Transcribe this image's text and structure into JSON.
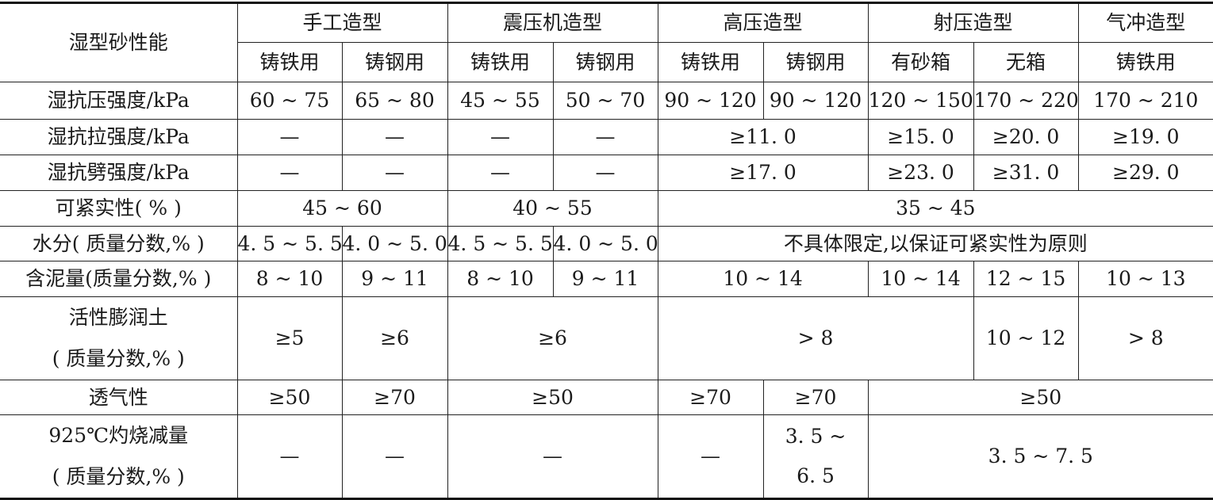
{
  "header": {
    "property": "湿型砂性能",
    "groups": [
      "手工造型",
      "震压机造型",
      "高压造型",
      "射压造型",
      "气冲造型"
    ],
    "subs": [
      "铸铁用",
      "铸钢用",
      "铸铁用",
      "铸钢用",
      "铸铁用",
      "铸钢用",
      "有砂箱",
      "无箱",
      "铸铁用"
    ]
  },
  "rows": [
    {
      "label": "湿抗压强度/kPa",
      "cells": [
        "60 ~ 75",
        "65 ~ 80",
        "45 ~ 55",
        "50 ~ 70",
        "90 ~ 120",
        "90 ~ 120",
        "120 ~ 150",
        "170 ~ 220",
        "170 ~ 210"
      ]
    },
    {
      "label": "湿抗拉强度/kPa",
      "cells": [
        "—",
        "—",
        "—",
        "—",
        "≥11. 0",
        "≥15. 0",
        "≥20. 0",
        "≥19. 0"
      ]
    },
    {
      "label": "湿抗劈强度/kPa",
      "cells": [
        "—",
        "—",
        "—",
        "—",
        "≥17. 0",
        "≥23. 0",
        "≥31. 0",
        "≥29. 0"
      ]
    },
    {
      "label": "可紧实性( % )",
      "cells": [
        "45 ~ 60",
        "40 ~ 55",
        "35 ~ 45"
      ]
    },
    {
      "label": "水分( 质量分数,% )",
      "cells": [
        "4. 5 ~ 5. 5",
        "4. 0 ~ 5. 0",
        "4. 5 ~ 5. 5",
        "4. 0 ~ 5. 0",
        "不具体限定,以保证可紧实性为原则"
      ]
    },
    {
      "label": "含泥量(质量分数,% )",
      "cells": [
        "8 ~ 10",
        "9 ~ 11",
        "8 ~ 10",
        "9 ~ 11",
        "10 ~ 14",
        "10 ~ 14",
        "12 ~ 15",
        "10 ~ 13"
      ]
    },
    {
      "label": [
        "活性膨润土",
        "( 质量分数,% )"
      ],
      "cells": [
        "≥5",
        "≥6",
        "≥6",
        "> 8",
        "10 ~ 12",
        "> 8"
      ]
    },
    {
      "label": "透气性",
      "cells": [
        "≥50",
        "≥70",
        "≥50",
        "≥70",
        "≥70",
        "≥50"
      ]
    },
    {
      "label": [
        "925℃灼烧减量",
        "( 质量分数,% )"
      ],
      "cells": [
        "—",
        "—",
        "—",
        "—",
        [
          "3. 5 ~",
          "6. 5"
        ],
        "3. 5 ~ 7. 5"
      ]
    }
  ]
}
